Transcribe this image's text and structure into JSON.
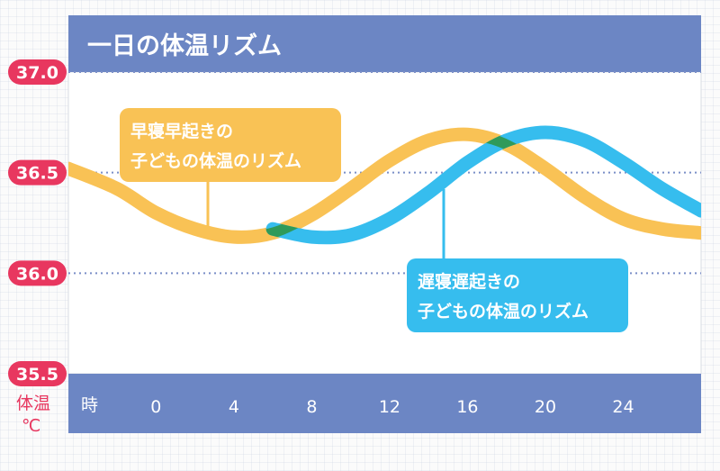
{
  "chart_data": {
    "type": "line",
    "title": "一日の体温リズム",
    "xlabel": "時",
    "ylabel": "体温\n℃",
    "x_ticks": [
      "0",
      "4",
      "8",
      "12",
      "16",
      "20",
      "24"
    ],
    "y_ticks": [
      "37.0",
      "36.5",
      "36.0",
      "35.5"
    ],
    "xlim": [
      -4.5,
      28
    ],
    "ylim": [
      35.5,
      37.0
    ],
    "grid": true,
    "series": [
      {
        "name": "早寝早起きの子どもの体温のリズム",
        "color": "#f9c255",
        "x": [
          -4.5,
          -2,
          0,
          2,
          4,
          6,
          8,
          10,
          12,
          14,
          16,
          18,
          20,
          22,
          24,
          26,
          28
        ],
        "y": [
          36.52,
          36.42,
          36.3,
          36.22,
          36.18,
          36.2,
          36.29,
          36.42,
          36.56,
          36.66,
          36.69,
          36.64,
          36.52,
          36.38,
          36.27,
          36.22,
          36.2
        ]
      },
      {
        "name": "遅寝遅起きの子どもの体温のリズム",
        "color": "#36bdee",
        "x": [
          6,
          8,
          10,
          12,
          14,
          16,
          18,
          20,
          22,
          24,
          26,
          28
        ],
        "y": [
          36.22,
          36.18,
          36.19,
          36.27,
          36.4,
          36.55,
          36.66,
          36.7,
          36.66,
          36.55,
          36.42,
          36.31
        ]
      }
    ],
    "annotations": [
      {
        "id": "early",
        "lines": [
          "早寝早起きの",
          "子どもの体温のリズム"
        ]
      },
      {
        "id": "late",
        "lines": [
          "遅寝遅起きの",
          "子どもの体温のリズム"
        ]
      }
    ]
  }
}
